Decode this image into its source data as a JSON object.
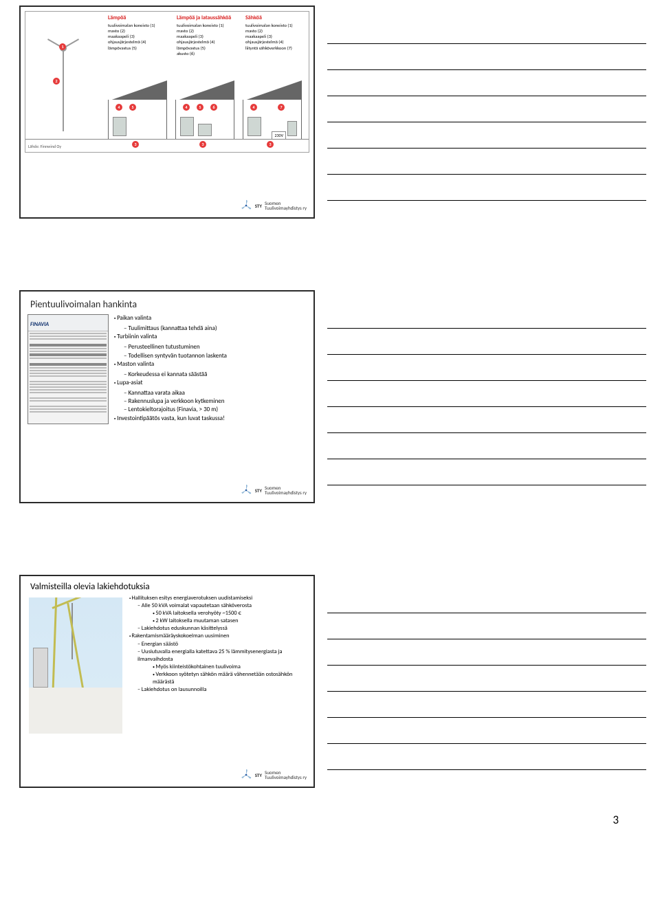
{
  "page_number": "3",
  "sty_logo": {
    "abbrev": "STY",
    "name_l1": "Suomen",
    "name_l2": "Tuulivoimayhdistys ry",
    "blade_color": "#8eb6d6",
    "accent_color": "#2a5ea6"
  },
  "slide1": {
    "source": "Lähde: Finnwind Oy",
    "tv230": "230V",
    "cols": [
      {
        "heading": "Lämpöä",
        "items": [
          "tuulivoimalan koneisto (1)",
          "masto (2)",
          "maakaapeli (3)",
          "ohjausjärjestelmä (4)",
          "lämpövastus (5)"
        ]
      },
      {
        "heading": "Lämpöä ja lataussähköä",
        "items": [
          "tuulivoimalan koneisto (1)",
          "masto (2)",
          "maakaapeli (3)",
          "ohjausjärjestelmä (4)",
          "lämpövastus (5)",
          "akusto (6)"
        ]
      },
      {
        "heading": "Sähköä",
        "items": [
          "tuulivoimalan koneisto (1)",
          "masto (2)",
          "maakaapeli (3)",
          "ohjausjärjestelmä (4)",
          "liityntä sähköverkkoon (7)"
        ]
      }
    ],
    "colors": {
      "heading": "#d81e1e",
      "marker": "#e63b3b",
      "roof": "#666666",
      "turbine": "#9a9a9a"
    }
  },
  "slide2": {
    "title": "Pientuulivoimalan hankinta",
    "form_brand": "FINAVIA",
    "bullets": [
      {
        "t": "Paikan valinta",
        "sub": [
          {
            "t": "Tuulimittaus (kannattaa tehdä aina)"
          }
        ]
      },
      {
        "t": "Turbiinin valinta",
        "sub": [
          {
            "t": "Perusteellinen tutustuminen"
          },
          {
            "t": "Todellisen syntyvän tuotannon laskenta"
          }
        ]
      },
      {
        "t": "Maston valinta",
        "sub": [
          {
            "t": "Korkeudessa ei kannata säästää"
          }
        ]
      },
      {
        "t": "Lupa-asiat",
        "sub": [
          {
            "t": "Kannattaa varata aikaa"
          },
          {
            "t": "Rakennuslupa ja verkkoon kytkeminen"
          },
          {
            "t": "Lentokieltorajoitus (Finavia, > 30 m)"
          }
        ]
      },
      {
        "t": "Investointipäätös vasta, kun luvat taskussa!"
      }
    ]
  },
  "slide3": {
    "title": "Valmisteilla olevia lakiehdotuksia",
    "bullets": [
      {
        "t": "Hallituksen esitys energiaverotuksen uudistamiseksi",
        "sub": [
          {
            "t": "Alle 50 kVA voimalat vapautetaan sähköverosta",
            "sub2": [
              {
                "t": "50 kVA laitoksella verohyöty ~1500 €"
              },
              {
                "t": "2 kW laitoksella muutaman satasen"
              }
            ]
          },
          {
            "t": "Lakiehdotus eduskunnan käsittelyssä"
          }
        ]
      },
      {
        "t": "Rakentamismääräyskokoelman uusiminen",
        "sub": [
          {
            "t": "Energian säästö"
          },
          {
            "t": "Uusiutuvalla energialla katettava 25 % lämmitysenergiasta ja ilmanvaihdosta",
            "sub2": [
              {
                "t": "Myös kiinteistökohtainen tuulivoima"
              },
              {
                "t": "Verkkoon syötetyn sähkön määrä vähennetään ostosähkön määrästä"
              }
            ]
          },
          {
            "t": "Lakiehdotus on lausunnoilla"
          }
        ]
      }
    ],
    "photo_colors": {
      "sky": "#d5e8f5",
      "ground": "#efeeea",
      "crane": "#c2bc52",
      "silo": "#d8d8d8"
    }
  }
}
